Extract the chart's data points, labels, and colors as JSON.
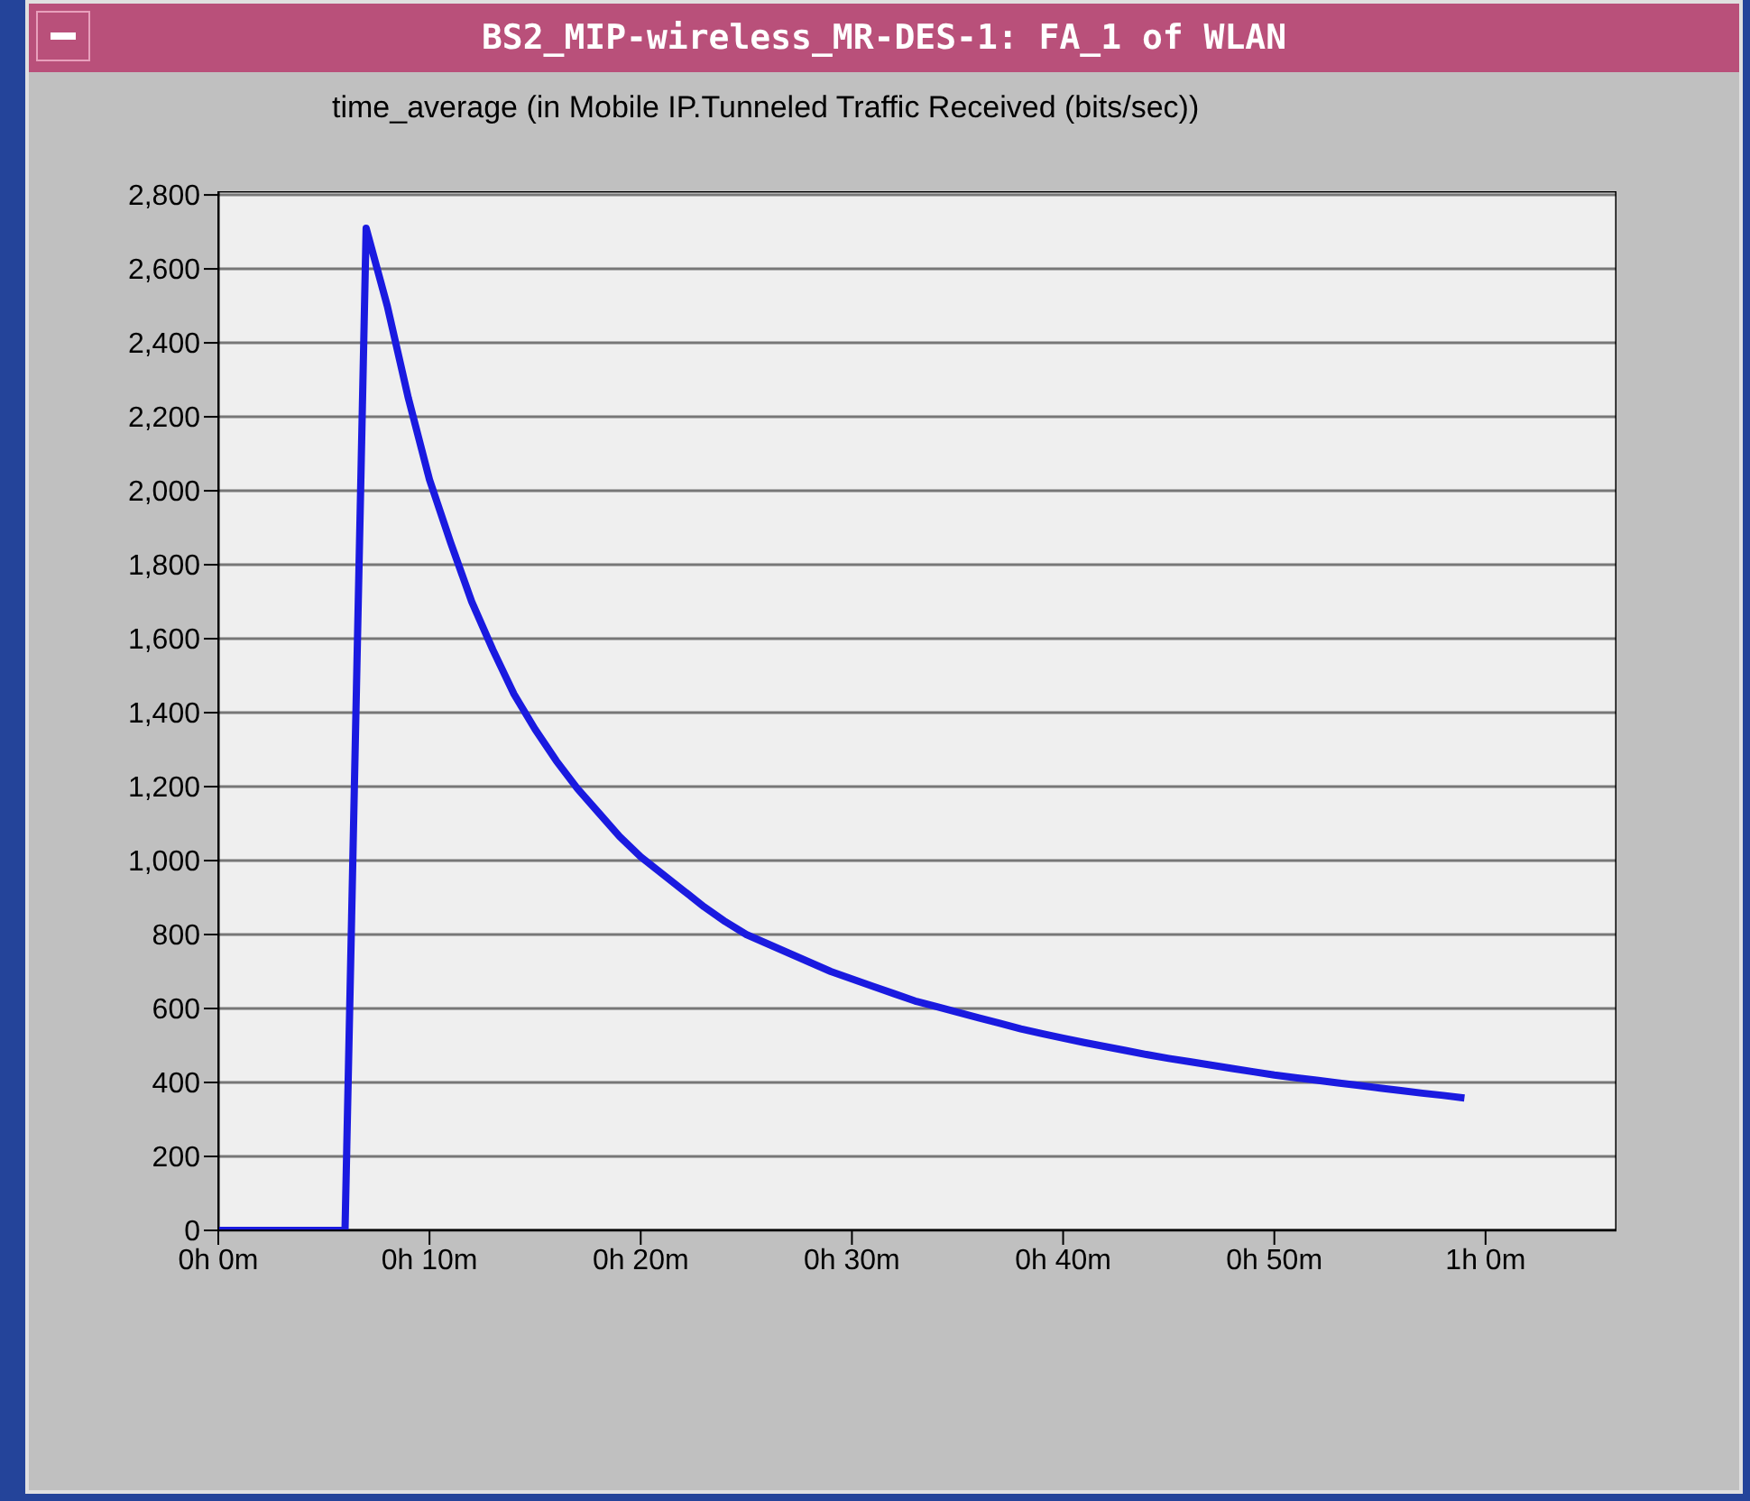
{
  "chart_data": {
    "type": "line",
    "title": "BS2_MIP-wireless_MR-DES-1: FA_1 of WLAN",
    "subtitle": "time_average (in Mobile IP.Tunneled Traffic Received (bits/sec))",
    "categories": [
      "0h 0m",
      null,
      null,
      null,
      null,
      null,
      null,
      null,
      null,
      null,
      "0h 10m",
      null,
      null,
      null,
      null,
      null,
      null,
      null,
      null,
      null,
      "0h 20m",
      null,
      null,
      null,
      null,
      null,
      null,
      null,
      null,
      null,
      "0h 30m",
      null,
      null,
      null,
      null,
      null,
      null,
      null,
      null,
      null,
      "0h 40m",
      null,
      null,
      null,
      null,
      null,
      null,
      null,
      null,
      null,
      "0h 50m",
      null,
      null,
      null,
      null,
      null,
      null,
      null,
      null,
      null,
      "1h 0m",
      null,
      null,
      null,
      null,
      null,
      null
    ],
    "series": [
      {
        "color": "#1a1ae0",
        "values": [
          0,
          0,
          0,
          0,
          0,
          0,
          0,
          2710,
          2500,
          2250,
          2030,
          1860,
          1700,
          1570,
          1450,
          1355,
          1270,
          1195,
          1130,
          1065,
          1010,
          965,
          920,
          875,
          835,
          800,
          775,
          750,
          725,
          700,
          680,
          660,
          640,
          620,
          605,
          590,
          575,
          560,
          545,
          532,
          520,
          508,
          497,
          486,
          475,
          465,
          456,
          447,
          438,
          429,
          420,
          413,
          406,
          399,
          392,
          385,
          378,
          371,
          365,
          358,
          null,
          null,
          null,
          null,
          null,
          null,
          null
        ]
      }
    ],
    "ylim": [
      0,
      2810
    ],
    "yticks": [
      0,
      200,
      400,
      600,
      800,
      {
        "value": 1000,
        "label": "1,000"
      },
      {
        "value": 1200,
        "label": "1,200"
      },
      {
        "value": 1400,
        "label": "1,400"
      },
      {
        "value": 1600,
        "label": "1,600"
      },
      {
        "value": 1800,
        "label": "1,800"
      },
      {
        "value": 2000,
        "label": "2,000"
      },
      {
        "value": 2200,
        "label": "2,200"
      },
      {
        "value": 2400,
        "label": "2,400"
      },
      {
        "value": 2600,
        "label": "2,600"
      },
      {
        "value": 2800,
        "label": "2,800"
      }
    ],
    "grid": "y",
    "marker": "none",
    "line_style": "solid"
  }
}
